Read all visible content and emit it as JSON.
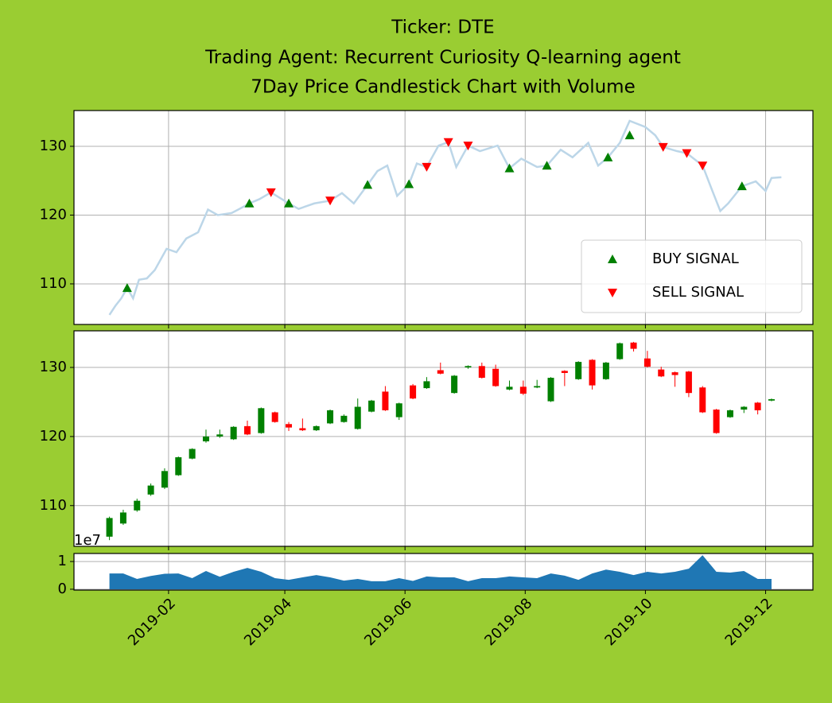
{
  "title": [
    "Ticker: DTE",
    "Trading Agent: Recurrent Curiosity Q-learning agent",
    "7Day Price Candlestick Chart with Volume"
  ],
  "chart_data": [
    {
      "type": "line",
      "color": "#bcd6e8",
      "legend": "lower right",
      "grid": true,
      "ylim": [
        104.1,
        135.2
      ],
      "yticks": [
        110,
        120,
        130
      ],
      "x": [
        "2019-01-02",
        "2019-01-05",
        "2019-01-08",
        "2019-01-11",
        "2019-01-14",
        "2019-01-17",
        "2019-01-21",
        "2019-01-25",
        "2019-01-31",
        "2019-02-05",
        "2019-02-10",
        "2019-02-16",
        "2019-02-21",
        "2019-02-26",
        "2019-03-05",
        "2019-03-09",
        "2019-03-14",
        "2019-03-19",
        "2019-03-25",
        "2019-04-03",
        "2019-04-08",
        "2019-04-16",
        "2019-04-24",
        "2019-04-30",
        "2019-05-06",
        "2019-05-13",
        "2019-05-18",
        "2019-05-23",
        "2019-05-28",
        "2019-06-03",
        "2019-06-07",
        "2019-06-12",
        "2019-06-18",
        "2019-06-23",
        "2019-06-27",
        "2019-07-03",
        "2019-07-09",
        "2019-07-18",
        "2019-07-24",
        "2019-07-30",
        "2019-08-07",
        "2019-08-12",
        "2019-08-19",
        "2019-08-25",
        "2019-09-02",
        "2019-09-07",
        "2019-09-12",
        "2019-09-18",
        "2019-09-23",
        "2019-10-01",
        "2019-10-06",
        "2019-10-10",
        "2019-10-17",
        "2019-10-22",
        "2019-10-30",
        "2019-11-04",
        "2019-11-08",
        "2019-11-12",
        "2019-11-19",
        "2019-11-26",
        "2019-12-01",
        "2019-12-04",
        "2019-12-09"
      ],
      "values": [
        105.5,
        106.8,
        107.9,
        109.4,
        107.9,
        110.6,
        110.8,
        112,
        115.1,
        114.6,
        116.6,
        117.5,
        120.8,
        120,
        120.3,
        120.9,
        121.7,
        122.3,
        123.3,
        121.7,
        120.9,
        121.7,
        122.1,
        123.2,
        121.7,
        124.4,
        126.4,
        127.2,
        122.8,
        124.5,
        127.5,
        127,
        130.1,
        130.6,
        127,
        130.1,
        129.3,
        130.1,
        126.8,
        128.2,
        127,
        127.2,
        129.5,
        128.4,
        130.5,
        127.2,
        128.4,
        130.5,
        133.7,
        132.8,
        131.6,
        129.9,
        129.3,
        129,
        127.2,
        123.5,
        120.6,
        121.7,
        124.2,
        124.9,
        123.5,
        125.4,
        125.5
      ],
      "markers": [
        {
          "name": "BUY SIGNAL",
          "color": "#008000",
          "marker": "^",
          "x": [
            "2019-01-11",
            "2019-03-14",
            "2019-04-03",
            "2019-05-13",
            "2019-06-03",
            "2019-07-24",
            "2019-08-12",
            "2019-09-12",
            "2019-09-23",
            "2019-11-19"
          ],
          "values": [
            109.4,
            121.7,
            121.7,
            124.4,
            124.5,
            126.8,
            127.2,
            128.4,
            131.6,
            124.2
          ]
        },
        {
          "name": "SELL SIGNAL",
          "color": "#ff0000",
          "marker": "v",
          "x": [
            "2019-03-25",
            "2019-04-24",
            "2019-06-12",
            "2019-06-23",
            "2019-07-03",
            "2019-10-10",
            "2019-10-22",
            "2019-10-30"
          ],
          "values": [
            123.3,
            122.1,
            127,
            130.6,
            130.1,
            129.9,
            129,
            127.2
          ]
        }
      ]
    },
    {
      "type": "candlestick",
      "up_color": "#008000",
      "down_color": "#ff0000",
      "grid": true,
      "ylim": [
        104.1,
        135.3
      ],
      "yticks": [
        110,
        120,
        130
      ],
      "x": [
        "2019-01-02",
        "2019-01-09",
        "2019-01-16",
        "2019-01-23",
        "2019-01-30",
        "2019-02-06",
        "2019-02-13",
        "2019-02-20",
        "2019-02-27",
        "2019-03-06",
        "2019-03-13",
        "2019-03-20",
        "2019-03-27",
        "2019-04-03",
        "2019-04-10",
        "2019-04-17",
        "2019-04-24",
        "2019-05-01",
        "2019-05-08",
        "2019-05-15",
        "2019-05-22",
        "2019-05-29",
        "2019-06-05",
        "2019-06-12",
        "2019-06-19",
        "2019-06-26",
        "2019-07-03",
        "2019-07-10",
        "2019-07-17",
        "2019-07-24",
        "2019-07-31",
        "2019-08-07",
        "2019-08-14",
        "2019-08-21",
        "2019-08-28",
        "2019-09-04",
        "2019-09-11",
        "2019-09-18",
        "2019-09-25",
        "2019-10-02",
        "2019-10-09",
        "2019-10-16",
        "2019-10-23",
        "2019-10-30",
        "2019-11-06",
        "2019-11-13",
        "2019-11-20",
        "2019-11-27",
        "2019-12-04"
      ],
      "open": [
        105.5,
        107.4,
        109.3,
        111.6,
        112.6,
        114.4,
        116.8,
        119.3,
        120,
        119.6,
        121.5,
        120.5,
        123.5,
        121.8,
        121.2,
        120.9,
        121.9,
        122.1,
        121.1,
        123.6,
        126.5,
        122.8,
        127.4,
        127,
        129.6,
        126.3,
        130,
        130.2,
        129.8,
        126.8,
        127.2,
        127.1,
        125.1,
        129.5,
        128.3,
        131.1,
        128.3,
        131.2,
        133.6,
        131.3,
        129.7,
        129.3,
        129.4,
        127.1,
        123.9,
        122.8,
        123.9,
        124.9,
        125.2
      ],
      "high": [
        108.4,
        109.4,
        111,
        113.2,
        115.4,
        117.1,
        118.3,
        121,
        121,
        121.5,
        122.3,
        124.2,
        123.6,
        122.1,
        122.6,
        121.6,
        123.9,
        123.2,
        125.5,
        125.3,
        127.3,
        124.9,
        127.6,
        128.6,
        130.7,
        128.9,
        130.3,
        130.7,
        130.4,
        128.1,
        128.1,
        128.2,
        128.6,
        129.6,
        130.9,
        131.2,
        130.8,
        133.6,
        133.7,
        132.4,
        130.1,
        129.4,
        129.5,
        127.3,
        124,
        123.9,
        124.4,
        125,
        125.5
      ],
      "low": [
        105,
        107.2,
        109.1,
        111.4,
        112.4,
        114.3,
        116.7,
        119.1,
        119.8,
        119.5,
        120.2,
        120.4,
        122,
        120.8,
        120.8,
        120.8,
        121.8,
        122,
        121,
        123.5,
        123.7,
        122.4,
        125.4,
        126.9,
        129,
        126.2,
        129.8,
        128.4,
        127.2,
        126.7,
        126,
        127,
        125,
        127.3,
        128.2,
        126.8,
        128.2,
        131.1,
        132.3,
        130,
        128.6,
        127.2,
        125.7,
        123.4,
        120.4,
        122.7,
        123.4,
        123.2,
        125.1
      ],
      "close": [
        108.2,
        109,
        110.7,
        112.9,
        115,
        117,
        118.2,
        120,
        120.3,
        121.4,
        120.3,
        124.1,
        122.1,
        121.3,
        120.9,
        121.5,
        123.8,
        123,
        124.3,
        125.2,
        123.8,
        124.8,
        125.5,
        128,
        129.1,
        128.8,
        130.2,
        128.5,
        127.3,
        127.2,
        126.2,
        127.3,
        128.5,
        129.2,
        130.8,
        127.4,
        130.7,
        133.5,
        132.7,
        130.1,
        128.7,
        128.9,
        126.3,
        123.5,
        120.5,
        123.8,
        124.3,
        123.8,
        125.4
      ]
    },
    {
      "type": "area",
      "color": "#1f77b4",
      "grid": true,
      "offset_label": "1e7",
      "ylim": [
        -0.03,
        1.29
      ],
      "yticks": [
        0,
        1
      ],
      "xlim": [
        "2018-12-15",
        "2019-12-25"
      ],
      "xticks": [
        {
          "value": "2019-02-01",
          "label": "2019-02"
        },
        {
          "value": "2019-04-01",
          "label": "2019-04"
        },
        {
          "value": "2019-06-01",
          "label": "2019-06"
        },
        {
          "value": "2019-08-01",
          "label": "2019-08"
        },
        {
          "value": "2019-10-01",
          "label": "2019-10"
        },
        {
          "value": "2019-12-01",
          "label": "2019-12"
        }
      ],
      "x": [
        "2019-01-02",
        "2019-01-09",
        "2019-01-16",
        "2019-01-23",
        "2019-01-30",
        "2019-02-06",
        "2019-02-13",
        "2019-02-20",
        "2019-02-27",
        "2019-03-06",
        "2019-03-13",
        "2019-03-20",
        "2019-03-27",
        "2019-04-03",
        "2019-04-10",
        "2019-04-17",
        "2019-04-24",
        "2019-05-01",
        "2019-05-08",
        "2019-05-15",
        "2019-05-22",
        "2019-05-29",
        "2019-06-05",
        "2019-06-12",
        "2019-06-19",
        "2019-06-26",
        "2019-07-03",
        "2019-07-10",
        "2019-07-17",
        "2019-07-24",
        "2019-07-31",
        "2019-08-07",
        "2019-08-14",
        "2019-08-21",
        "2019-08-28",
        "2019-09-04",
        "2019-09-11",
        "2019-09-18",
        "2019-09-25",
        "2019-10-02",
        "2019-10-09",
        "2019-10-16",
        "2019-10-23",
        "2019-10-30",
        "2019-11-06",
        "2019-11-13",
        "2019-11-20",
        "2019-11-27",
        "2019-12-04"
      ],
      "values": [
        0.57,
        0.57,
        0.37,
        0.48,
        0.56,
        0.57,
        0.4,
        0.66,
        0.45,
        0.63,
        0.77,
        0.63,
        0.4,
        0.34,
        0.43,
        0.51,
        0.43,
        0.31,
        0.37,
        0.29,
        0.29,
        0.4,
        0.3,
        0.46,
        0.43,
        0.43,
        0.29,
        0.4,
        0.4,
        0.46,
        0.43,
        0.4,
        0.57,
        0.49,
        0.34,
        0.57,
        0.71,
        0.63,
        0.51,
        0.63,
        0.57,
        0.63,
        0.74,
        1.23,
        0.63,
        0.6,
        0.66,
        0.37,
        0.37
      ]
    }
  ]
}
